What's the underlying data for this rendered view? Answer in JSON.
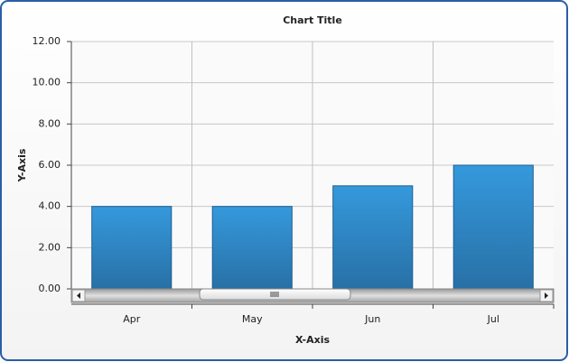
{
  "chart_data": {
    "type": "bar",
    "title": "Chart Title",
    "x_label": "X-Axis",
    "y_label": "Y-Axis",
    "categories": [
      "Apr",
      "May",
      "Jun",
      "Jul"
    ],
    "values": [
      4,
      4,
      5,
      6
    ],
    "color": "#2f8bcc",
    "ylim": [
      0,
      12
    ],
    "yticks": [
      {
        "value": 0,
        "label": "0.00"
      },
      {
        "value": 2,
        "label": "2.00"
      },
      {
        "value": 4,
        "label": "4.00"
      },
      {
        "value": 6,
        "label": "6.00"
      },
      {
        "value": 8,
        "label": "8.00"
      },
      {
        "value": 10,
        "label": "10.00"
      },
      {
        "value": 12,
        "label": "12.00"
      }
    ],
    "grid": true
  }
}
